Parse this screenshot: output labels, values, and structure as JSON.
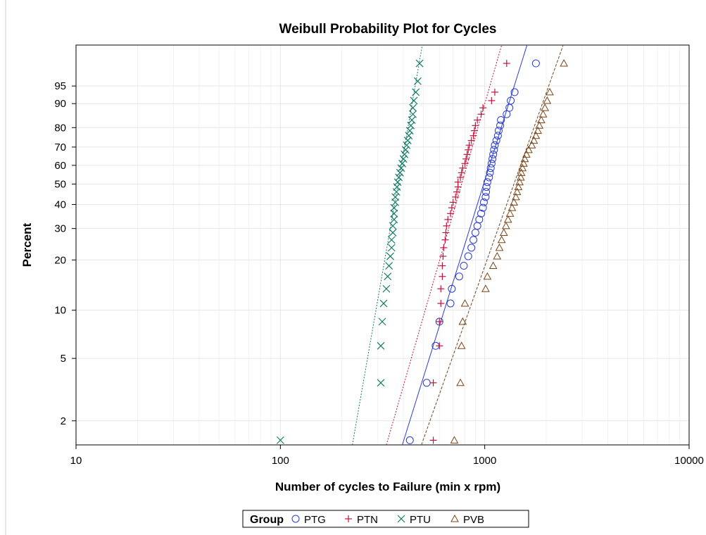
{
  "chart_data": {
    "type": "scatter",
    "title": "Weibull Probability Plot for Cycles",
    "xlabel": "Number of cycles to Failure (min x rpm)",
    "ylabel": "Percent",
    "x_scale": "log",
    "y_scale": "weibull",
    "xlim": [
      10,
      10000
    ],
    "ylim": [
      1.4,
      99.6
    ],
    "x_ticks": [
      10,
      100,
      1000,
      10000
    ],
    "x_tick_labels": [
      "10",
      "100",
      "1000",
      "10000"
    ],
    "y_ticks": [
      2,
      5,
      10,
      20,
      30,
      40,
      50,
      60,
      70,
      80,
      90,
      95
    ],
    "y_tick_labels": [
      "2",
      "5",
      "10",
      "20",
      "30",
      "40",
      "50",
      "60",
      "70",
      "80",
      "90",
      "95"
    ],
    "grid": true,
    "legend": {
      "title": "Group",
      "position": "bottom-center"
    },
    "series": [
      {
        "name": "PTG",
        "marker": "circle",
        "color": "#2a3bd6",
        "fit_line": {
          "x": [
            395,
            1610
          ],
          "y": [
            1.4,
            99.6
          ],
          "style": "solid"
        },
        "x": [
          430,
          520,
          575,
          600,
          680,
          690,
          750,
          790,
          830,
          860,
          880,
          900,
          920,
          940,
          960,
          980,
          990,
          1010,
          1015,
          1020,
          1030,
          1050,
          1060,
          1070,
          1080,
          1090,
          1100,
          1110,
          1120,
          1140,
          1160,
          1170,
          1190,
          1200,
          1280,
          1320,
          1340,
          1400,
          1780
        ],
        "y": [
          1.5,
          3.5,
          6,
          8.5,
          11,
          13.5,
          16,
          18.5,
          21,
          23.5,
          26,
          28.5,
          31,
          33.5,
          36,
          38.5,
          41,
          43.5,
          46,
          48.5,
          51,
          53.5,
          56,
          58.5,
          61,
          63.5,
          66,
          68.5,
          71,
          73.5,
          76,
          78.5,
          81,
          83.5,
          86,
          88.5,
          91,
          93.5,
          98.5
        ]
      },
      {
        "name": "PTN",
        "marker": "plus",
        "color": "#c0143c",
        "fit_line": {
          "x": [
            330,
            1210
          ],
          "y": [
            1.4,
            99.6
          ],
          "style": "dotted"
        },
        "x": [
          560,
          560,
          600,
          600,
          610,
          610,
          620,
          620,
          625,
          630,
          640,
          645,
          650,
          660,
          680,
          690,
          700,
          720,
          730,
          740,
          740,
          760,
          770,
          780,
          800,
          810,
          820,
          830,
          840,
          860,
          880,
          890,
          900,
          920,
          960,
          980,
          1080,
          1120,
          1280
        ],
        "y": [
          1.5,
          3.5,
          6,
          8.5,
          11,
          13.5,
          16,
          18.5,
          21,
          23.5,
          26,
          28.5,
          31,
          33.5,
          36,
          38.5,
          41,
          43.5,
          46,
          48.5,
          51,
          53.5,
          56,
          58.5,
          61,
          63.5,
          66,
          68.5,
          71,
          73.5,
          76,
          78.5,
          81,
          83.5,
          86,
          88.5,
          91,
          93.5,
          98.5
        ]
      },
      {
        "name": "PTU",
        "marker": "x",
        "color": "#137a64",
        "fit_line": {
          "x": [
            225,
            495
          ],
          "y": [
            1.4,
            99.6
          ],
          "style": "dotted"
        },
        "x": [
          100,
          310,
          310,
          315,
          320,
          330,
          335,
          340,
          345,
          350,
          350,
          355,
          355,
          360,
          360,
          360,
          365,
          365,
          370,
          372,
          375,
          380,
          385,
          390,
          395,
          400,
          405,
          410,
          415,
          420,
          425,
          430,
          435,
          440,
          445,
          445,
          450,
          460,
          470,
          480
        ],
        "y": [
          1.5,
          3.5,
          6,
          8.5,
          11,
          13.5,
          16,
          18.5,
          21,
          23.5,
          26,
          28.5,
          31,
          33.5,
          36,
          38.5,
          41,
          43.5,
          46,
          48.5,
          51,
          53.5,
          56,
          58.5,
          61,
          63.5,
          66,
          68.5,
          71,
          73.5,
          76,
          78.5,
          81,
          83.5,
          86,
          88.5,
          91,
          93.5,
          96,
          98.5
        ]
      },
      {
        "name": "PVB",
        "marker": "triangle",
        "color": "#7a4518",
        "fit_line": {
          "x": [
            490,
            2420
          ],
          "y": [
            1.4,
            99.6
          ],
          "style": "dashed"
        },
        "x": [
          710,
          760,
          770,
          780,
          800,
          1010,
          1030,
          1100,
          1150,
          1180,
          1210,
          1240,
          1270,
          1300,
          1330,
          1360,
          1390,
          1420,
          1440,
          1460,
          1480,
          1500,
          1510,
          1530,
          1550,
          1570,
          1600,
          1640,
          1700,
          1740,
          1780,
          1820,
          1850,
          1890,
          1930,
          1970,
          2020,
          2080,
          2440
        ],
        "y": [
          1.5,
          3.5,
          6,
          8.5,
          11,
          13.5,
          16,
          18.5,
          21,
          23.5,
          26,
          28.5,
          31,
          33.5,
          36,
          38.5,
          41,
          43.5,
          46,
          48.5,
          51,
          53.5,
          56,
          58.5,
          61,
          63.5,
          66,
          68.5,
          71,
          73.5,
          76,
          78.5,
          81,
          83.5,
          86,
          88.5,
          91,
          93.5,
          98.5
        ]
      }
    ]
  }
}
